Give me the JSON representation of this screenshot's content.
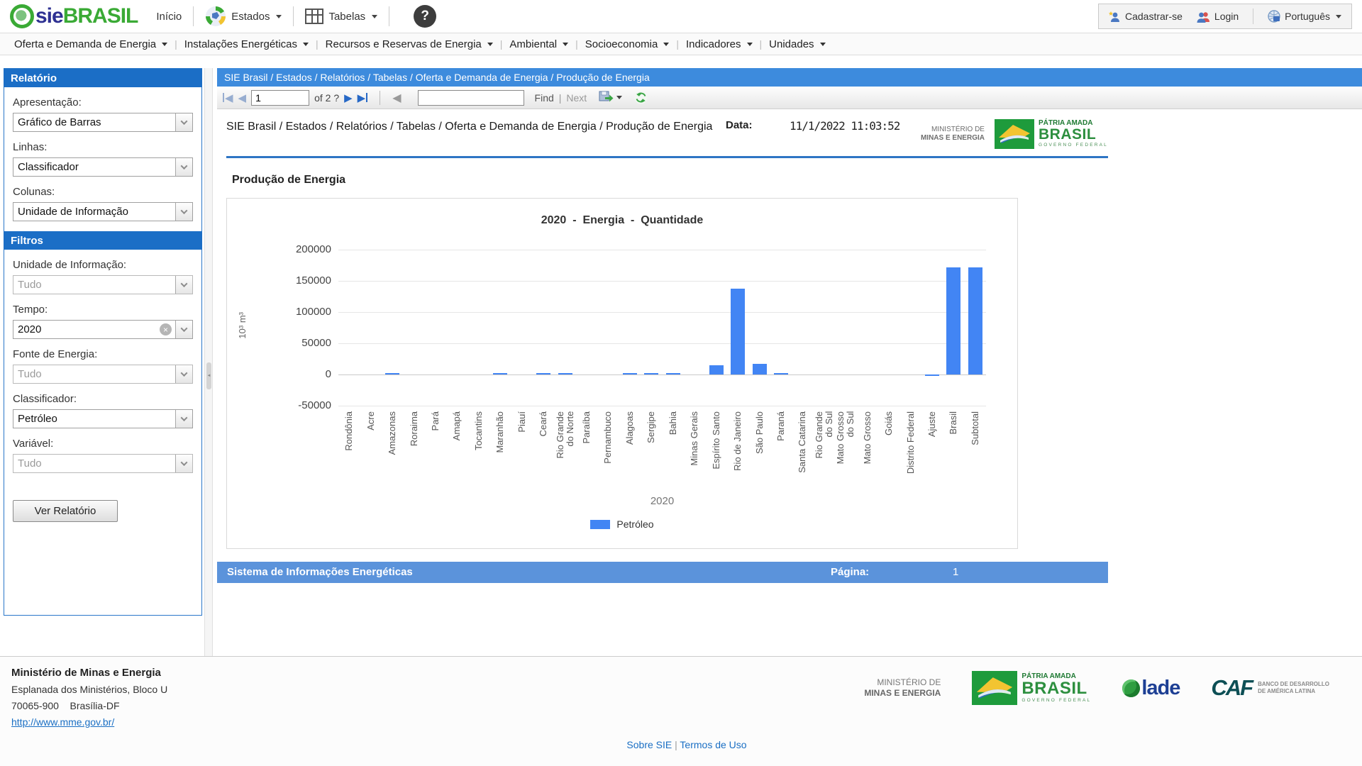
{
  "header": {
    "logo_sie": "sie",
    "logo_brasil": "BRASIL",
    "inicio": "Início",
    "estados": "Estados",
    "tabelas": "Tabelas",
    "help": "?",
    "cadastrar": "Cadastrar-se",
    "login": "Login",
    "language": "Português"
  },
  "menu": {
    "items": [
      "Oferta e Demanda de Energia",
      "Instalações Energéticas",
      "Recursos e Reservas de Energia",
      "Ambiental",
      "Socioeconomia",
      "Indicadores",
      "Unidades"
    ]
  },
  "sidebar": {
    "report_header": "Relatório",
    "filters_header": "Filtros",
    "report_fields": [
      {
        "label": "Apresentação:",
        "value": "Gráfico de Barras"
      },
      {
        "label": "Linhas:",
        "value": "Classificador"
      },
      {
        "label": "Colunas:",
        "value": "Unidade de Informação"
      }
    ],
    "filter_fields": [
      {
        "label": "Unidade de Informação:",
        "value": "Tudo"
      },
      {
        "label": "Tempo:",
        "value": "2020"
      },
      {
        "label": "Fonte de Energia:",
        "value": "Tudo"
      },
      {
        "label": "Classificador:",
        "value": "Petróleo"
      },
      {
        "label": "Variável:",
        "value": "Tudo"
      }
    ],
    "view_report_button": "Ver Relatório"
  },
  "report": {
    "breadcrumb": "SIE Brasil / Estados / Relatórios / Tabelas / Oferta e Demanda de Energia / Produção de Energia",
    "toolbar": {
      "page_value": "1",
      "of_label": "of 2 ?",
      "find_label": "Find",
      "next_label": "Next"
    },
    "header": {
      "title_line": "SIE Brasil / Estados / Relatórios / Tabelas / Oferta e Demanda de Energia / Produção de Energia",
      "data_label": "Data:",
      "data_value": "11/1/2022 11:03:52",
      "ministry": [
        "MINISTÉRIO DE",
        "MINAS E ENERGIA"
      ],
      "flag": [
        "PÁTRIA AMADA",
        "BRASIL",
        "GOVERNO FEDERAL"
      ]
    },
    "section_title": "Produção de Energia",
    "footer_bar": {
      "left": "Sistema de Informações Energéticas",
      "page_label": "Página:",
      "page_value": "1"
    }
  },
  "chart_data": {
    "type": "bar",
    "title": "2020  -  Energia  -  Quantidade",
    "ylabel": "10³ m³",
    "xlabel": "2020",
    "ylim": [
      -50000,
      200000
    ],
    "yticks": [
      200000,
      150000,
      100000,
      50000,
      0,
      -50000
    ],
    "grid": true,
    "legend_position": "bottom",
    "legend": [
      {
        "label": "Petróleo",
        "color": "#4285f4"
      }
    ],
    "categories": [
      "Rondônia",
      "Acre",
      "Amazonas",
      "Roraima",
      "Pará",
      "Amapá",
      "Tocantins",
      "Maranhão",
      "Piauí",
      "Ceará",
      "Rio Grande\ndo Norte",
      "Paraíba",
      "Pernambuco",
      "Alagoas",
      "Sergipe",
      "Bahia",
      "Minas Gerais",
      "Espírito Santo",
      "Rio de Janeiro",
      "São Paulo",
      "Paraná",
      "Santa Catarina",
      "Rio Grande\ndo Sul",
      "Mato Grosso\ndo Sul",
      "Mato Grosso",
      "Goiás",
      "Distrito Federal",
      "Ajuste",
      "Brasil",
      "Subtotal"
    ],
    "values": [
      0,
      0,
      2000,
      0,
      0,
      0,
      0,
      2000,
      0,
      2200,
      2200,
      0,
      0,
      2000,
      2000,
      2200,
      0,
      15000,
      137000,
      17000,
      1200,
      0,
      0,
      0,
      0,
      0,
      0,
      -2500,
      172000,
      172000
    ]
  },
  "footer": {
    "org": "Ministério de Minas e Energia",
    "address1": "Esplanada dos Ministérios, Bloco U",
    "address2": "70065-900    Brasília-DF",
    "url": "http://www.mme.gov.br/",
    "links": [
      "Sobre SIE",
      "Termos de Uso"
    ],
    "logos": {
      "ministry": [
        "MINISTÉRIO DE",
        "MINAS E ENERGIA"
      ],
      "flag": [
        "PÁTRIA AMADA",
        "BRASIL",
        "GOVERNO FEDERAL"
      ],
      "olade_label": "lade",
      "caf_word": "CAF",
      "caf_caption1": "BANCO DE DESARROLLO",
      "caf_caption2": "DE AMÉRICA LATINA"
    }
  },
  "colors": {
    "accent_blue": "#1b6ec6",
    "breadcrumb_blue": "#3d8bdd",
    "bar_blue": "#4285f4",
    "report_footer_blue": "#5b93db",
    "link_blue": "#1a6fc4"
  }
}
